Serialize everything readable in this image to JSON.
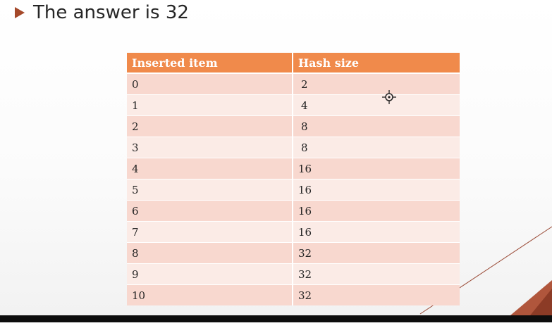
{
  "slide": {
    "heading": "The answer is 32",
    "bullet_icon": "triangle-bullet-icon"
  },
  "table": {
    "headers": [
      "Inserted item",
      "Hash size"
    ],
    "rows": [
      {
        "item": "0",
        "size": "2"
      },
      {
        "item": "1",
        "size": "4"
      },
      {
        "item": "2",
        "size": "8"
      },
      {
        "item": "3",
        "size": "8"
      },
      {
        "item": "4",
        "size": "16"
      },
      {
        "item": "5",
        "size": "16"
      },
      {
        "item": "6",
        "size": "16"
      },
      {
        "item": "7",
        "size": "16"
      },
      {
        "item": "8",
        "size": "32"
      },
      {
        "item": "9",
        "size": "32"
      },
      {
        "item": "10",
        "size": "32"
      }
    ]
  },
  "colors": {
    "accent": "#f08a4b",
    "bullet": "#a5492a",
    "row_odd": "#f8d8cf",
    "row_even": "#fbebe6"
  },
  "cursor": {
    "icon": "crosshair-cursor-icon"
  }
}
